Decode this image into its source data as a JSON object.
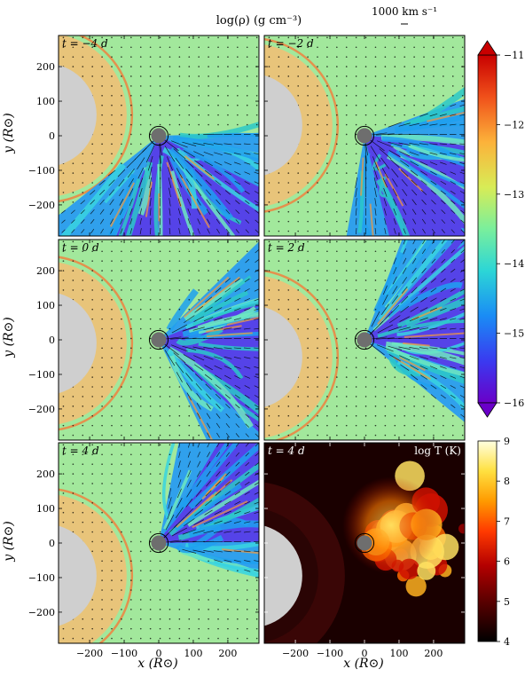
{
  "figure": {
    "colorbar_title": "log(ρ) (g cm⁻³)",
    "velocity_key_label": "1000 km s⁻¹",
    "x_axis_label": "x (R⊙)",
    "y_axis_label": "y (R⊙)",
    "x_ticks": [
      "−200",
      "−100",
      "0",
      "100",
      "200"
    ],
    "y_ticks": [
      "200",
      "100",
      "0",
      "−100",
      "−200"
    ]
  },
  "chart_data": [
    {
      "type": "heatmap",
      "panel": "t = −4 d",
      "quantity": "log ρ",
      "xlim": [
        -290,
        290
      ],
      "ylim": [
        -290,
        290
      ],
      "x_ticks": [
        -200,
        -100,
        0,
        100,
        200
      ],
      "y_ticks": [
        -200,
        -100,
        0,
        100,
        200
      ],
      "companion_star": {
        "x": 0,
        "y": 0,
        "radius": 22
      },
      "primary_star": {
        "x": -330,
        "y": 60,
        "radius": 150
      },
      "velocity_arrows": true
    },
    {
      "type": "heatmap",
      "panel": "t = −2 d",
      "quantity": "log ρ",
      "xlim": [
        -290,
        290
      ],
      "ylim": [
        -290,
        290
      ],
      "companion_star": {
        "x": 0,
        "y": 0,
        "radius": 22
      },
      "primary_star": {
        "x": -330,
        "y": 30,
        "radius": 150
      },
      "velocity_arrows": true
    },
    {
      "type": "heatmap",
      "panel": "t = 0 d",
      "quantity": "log ρ",
      "xlim": [
        -290,
        290
      ],
      "ylim": [
        -290,
        290
      ],
      "companion_star": {
        "x": 0,
        "y": 0,
        "radius": 22
      },
      "primary_star": {
        "x": -330,
        "y": -10,
        "radius": 150
      },
      "velocity_arrows": true
    },
    {
      "type": "heatmap",
      "panel": "t = 2 d",
      "quantity": "log ρ",
      "xlim": [
        -290,
        290
      ],
      "ylim": [
        -290,
        290
      ],
      "companion_star": {
        "x": 0,
        "y": 0,
        "radius": 22
      },
      "primary_star": {
        "x": -330,
        "y": -50,
        "radius": 150
      },
      "velocity_arrows": true
    },
    {
      "type": "heatmap",
      "panel": "t = 4 d",
      "quantity": "log ρ",
      "xlim": [
        -290,
        290
      ],
      "ylim": [
        -290,
        290
      ],
      "companion_star": {
        "x": 0,
        "y": 0,
        "radius": 22
      },
      "primary_star": {
        "x": -330,
        "y": -95,
        "radius": 150
      },
      "velocity_arrows": true
    },
    {
      "type": "heatmap",
      "panel": "t = 4 d",
      "quantity": "log T (K)",
      "xlim": [
        -290,
        290
      ],
      "ylim": [
        -290,
        290
      ],
      "companion_star": {
        "x": 0,
        "y": 0,
        "radius": 22
      },
      "primary_star": {
        "x": -330,
        "y": -95,
        "radius": 150
      },
      "velocity_arrows": false
    }
  ],
  "colorbars": {
    "density": {
      "ticks": [
        "−11",
        "−12",
        "−13",
        "−14",
        "−15",
        "−16"
      ],
      "range": [
        -16,
        -11
      ],
      "colors": [
        "#6a00c8",
        "#3a3af0",
        "#1a8cf5",
        "#2cd6d6",
        "#7aef9c",
        "#d8ec56",
        "#fcb23a",
        "#f0501a",
        "#c80000"
      ]
    },
    "temperature": {
      "ticks": [
        "9",
        "8",
        "7",
        "6",
        "5",
        "4"
      ],
      "range": [
        4,
        9
      ],
      "colors": [
        "#000000",
        "#5a0000",
        "#b40000",
        "#ff3a00",
        "#ff9a00",
        "#ffe040",
        "#ffffe0"
      ]
    }
  },
  "panel_labels": [
    "t = −4 d",
    "t = −2 d",
    "t = 0 d",
    "t = 2 d",
    "t = 4 d",
    "t = 4 d"
  ],
  "temperature_label": "log T (K)"
}
